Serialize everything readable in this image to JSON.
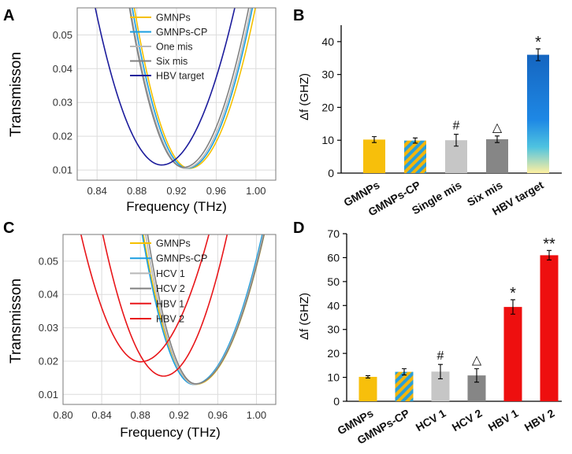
{
  "chart_data": [
    {
      "type": "line",
      "panel_label": "A",
      "xlabel": "Frequency (THz)",
      "ylabel": "Transmisson",
      "xlim": [
        0.82,
        1.02
      ],
      "ylim": [
        0.007,
        0.058
      ],
      "xticks": [
        "0.84",
        "0.88",
        "0.92",
        "0.96",
        "1.00"
      ],
      "yticks": [
        "0.01",
        "0.02",
        "0.03",
        "0.04",
        "0.05"
      ],
      "xtick_values": [
        0.84,
        0.88,
        0.92,
        0.96,
        1.0
      ],
      "ytick_values": [
        0.01,
        0.02,
        0.03,
        0.04,
        0.05
      ],
      "legend_position": "top-center",
      "series": [
        {
          "name": "GMNPs",
          "color": "#f5c000",
          "curve": {
            "center": 0.933,
            "min": 0.0105,
            "width_left": 0.0555,
            "width_right": 0.0665
          }
        },
        {
          "name": "GMNPs-CP",
          "color": "#1a9ee0",
          "curve": {
            "center": 0.931,
            "min": 0.0105,
            "width_left": 0.0555,
            "width_right": 0.0655
          }
        },
        {
          "name": "One mis",
          "color": "#b8b8b8",
          "curve": {
            "center": 0.929,
            "min": 0.0105,
            "width_left": 0.0555,
            "width_right": 0.066
          }
        },
        {
          "name": "Six mis",
          "color": "#808080",
          "curve": {
            "center": 0.927,
            "min": 0.0108,
            "width_left": 0.0545,
            "width_right": 0.066
          }
        },
        {
          "name": "HBV target",
          "color": "#1c1c9c",
          "curve": {
            "center": 0.905,
            "min": 0.0115,
            "width_left": 0.0675,
            "width_right": 0.0745
          }
        }
      ]
    },
    {
      "type": "bar",
      "panel_label": "B",
      "ylabel": "Δf (GHZ)",
      "ylim": [
        0,
        45
      ],
      "yticks": [
        "0",
        "10",
        "20",
        "30",
        "40"
      ],
      "ytick_values": [
        0,
        10,
        20,
        30,
        40
      ],
      "categories": [
        "GMNPs",
        "GMNPs-CP",
        "Single mis",
        "Six mis",
        "HBV target"
      ],
      "values": [
        10.2,
        9.9,
        10.0,
        10.3,
        36.0
      ],
      "errors": [
        0.9,
        0.8,
        1.8,
        1.0,
        1.8
      ],
      "annotations": [
        "",
        "",
        "#",
        "△",
        "*"
      ],
      "styles": [
        "yellow",
        "striped",
        "lightgray",
        "darkgray",
        "blue-yellow-gradient"
      ]
    },
    {
      "type": "line",
      "panel_label": "C",
      "xlabel": "Frequency (THz)",
      "ylabel": "Transmisson",
      "xlim": [
        0.8,
        1.02
      ],
      "ylim": [
        0.007,
        0.058
      ],
      "xticks": [
        "0.80",
        "0.84",
        "0.88",
        "0.92",
        "0.96",
        "1.00"
      ],
      "yticks": [
        "0.01",
        "0.02",
        "0.03",
        "0.04",
        "0.05"
      ],
      "xtick_values": [
        0.8,
        0.84,
        0.88,
        0.92,
        0.96,
        1.0
      ],
      "ytick_values": [
        0.01,
        0.02,
        0.03,
        0.04,
        0.05
      ],
      "legend_position": "top-center",
      "series": [
        {
          "name": "GMNPs",
          "color": "#f5c000",
          "curve": {
            "center": 0.937,
            "min": 0.013,
            "width_left": 0.0555,
            "width_right": 0.073
          }
        },
        {
          "name": "GMNPs-CP",
          "color": "#1a9ee0",
          "curve": {
            "center": 0.935,
            "min": 0.013,
            "width_left": 0.0545,
            "width_right": 0.073
          }
        },
        {
          "name": "HCV 1",
          "color": "#b8b8b8",
          "curve": {
            "center": 0.936,
            "min": 0.013,
            "width_left": 0.052,
            "width_right": 0.073
          }
        },
        {
          "name": "HCV 2",
          "color": "#808080",
          "curve": {
            "center": 0.937,
            "min": 0.0132,
            "width_left": 0.051,
            "width_right": 0.073
          }
        },
        {
          "name": "HBV 1",
          "color": "#e8161a",
          "curve": {
            "center": 0.904,
            "min": 0.0155,
            "width_left": 0.0665,
            "width_right": 0.0695
          }
        },
        {
          "name": "HBV 2",
          "color": "#e8161a",
          "curve": {
            "center": 0.88,
            "min": 0.0198,
            "width_left": 0.0685,
            "width_right": 0.079
          }
        }
      ]
    },
    {
      "type": "bar",
      "panel_label": "D",
      "ylabel": "Δf (GHZ)",
      "ylim": [
        0,
        70
      ],
      "yticks": [
        "0",
        "10",
        "20",
        "30",
        "40",
        "50",
        "60",
        "70"
      ],
      "ytick_values": [
        0,
        10,
        20,
        30,
        40,
        50,
        60,
        70
      ],
      "categories": [
        "GMNPs",
        "GMNPs-CP",
        "HCV 1",
        "HCV 2",
        "HBV 1",
        "HBV 2"
      ],
      "values": [
        10.2,
        12.3,
        12.4,
        10.8,
        39.4,
        61.0
      ],
      "errors": [
        0.5,
        1.3,
        3.0,
        2.8,
        3.0,
        2.0
      ],
      "annotations": [
        "",
        "",
        "#",
        "△",
        "*",
        "**"
      ],
      "styles": [
        "yellow",
        "striped",
        "lightgray",
        "darkgray",
        "red",
        "red"
      ]
    }
  ]
}
